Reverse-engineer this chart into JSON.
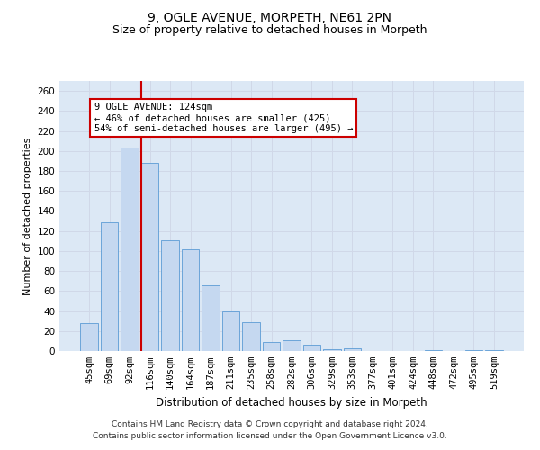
{
  "title1": "9, OGLE AVENUE, MORPETH, NE61 2PN",
  "title2": "Size of property relative to detached houses in Morpeth",
  "xlabel": "Distribution of detached houses by size in Morpeth",
  "ylabel": "Number of detached properties",
  "categories": [
    "45sqm",
    "69sqm",
    "92sqm",
    "116sqm",
    "140sqm",
    "164sqm",
    "187sqm",
    "211sqm",
    "235sqm",
    "258sqm",
    "282sqm",
    "306sqm",
    "329sqm",
    "353sqm",
    "377sqm",
    "401sqm",
    "424sqm",
    "448sqm",
    "472sqm",
    "495sqm",
    "519sqm"
  ],
  "values": [
    28,
    129,
    203,
    188,
    111,
    102,
    66,
    40,
    29,
    9,
    11,
    6,
    2,
    3,
    0,
    0,
    0,
    1,
    0,
    1,
    1
  ],
  "bar_color": "#c5d8f0",
  "bar_edge_color": "#5b9bd5",
  "red_line_x": 2.575,
  "red_line_color": "#cc0000",
  "annotation_text": "9 OGLE AVENUE: 124sqm\n← 46% of detached houses are smaller (425)\n54% of semi-detached houses are larger (495) →",
  "annotation_box_color": "#ffffff",
  "annotation_box_edge_color": "#cc0000",
  "ylim": [
    0,
    270
  ],
  "yticks": [
    0,
    20,
    40,
    60,
    80,
    100,
    120,
    140,
    160,
    180,
    200,
    220,
    240,
    260
  ],
  "grid_color": "#d0d8e8",
  "background_color": "#dce8f5",
  "footer1": "Contains HM Land Registry data © Crown copyright and database right 2024.",
  "footer2": "Contains public sector information licensed under the Open Government Licence v3.0.",
  "title1_fontsize": 10,
  "title2_fontsize": 9,
  "xlabel_fontsize": 8.5,
  "ylabel_fontsize": 8,
  "tick_fontsize": 7.5,
  "footer_fontsize": 6.5,
  "annotation_fontsize": 7.5
}
